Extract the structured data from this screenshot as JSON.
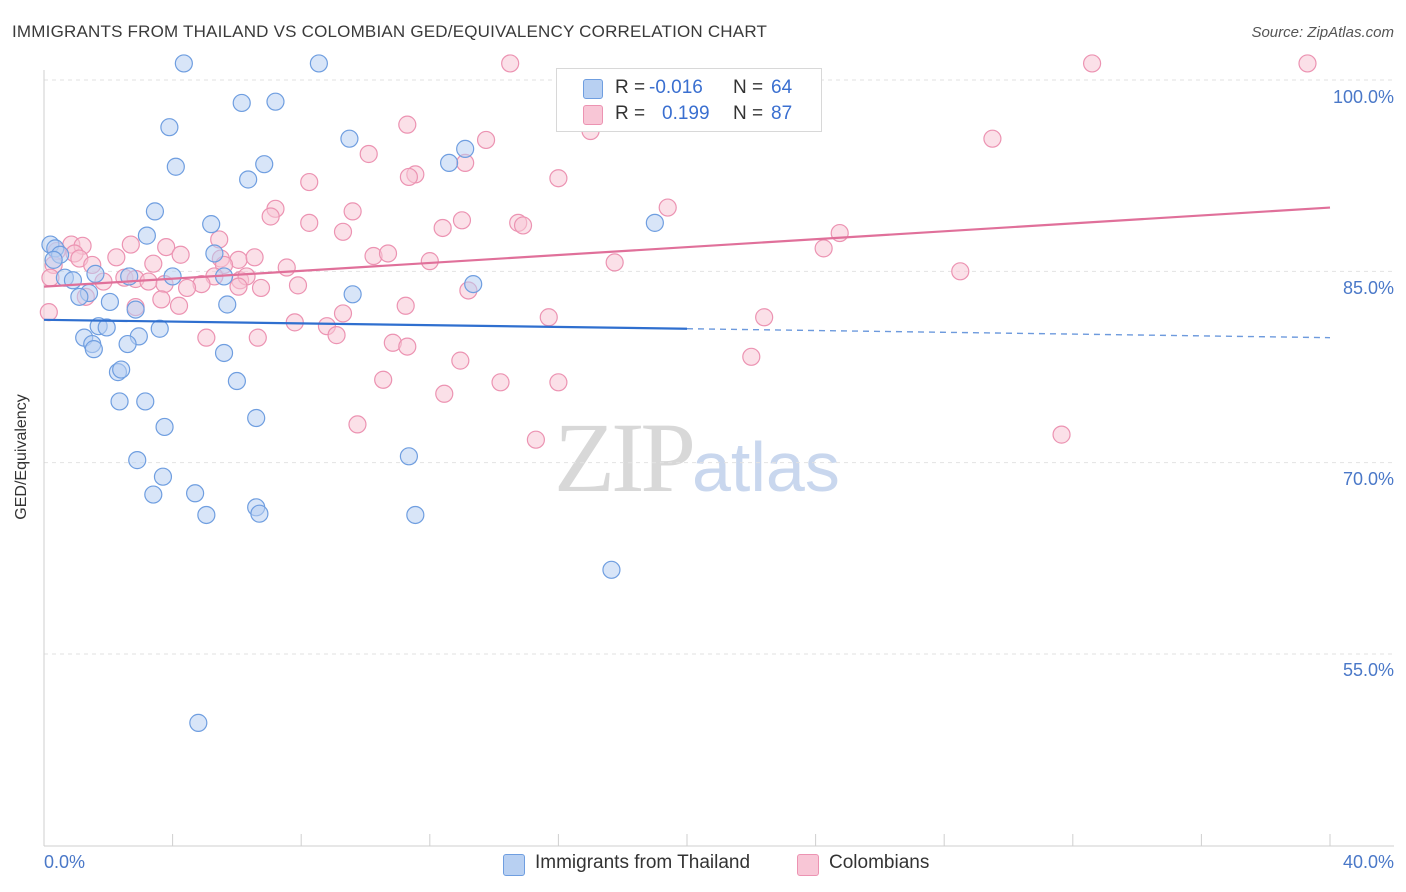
{
  "header": {
    "title": "IMMIGRANTS FROM THAILAND VS COLOMBIAN GED/EQUIVALENCY CORRELATION CHART",
    "source": "Source: ZipAtlas.com"
  },
  "watermark": {
    "a": "ZIP",
    "b": "atlas"
  },
  "legend_top": {
    "rows": [
      {
        "r_label": "R =",
        "r_value": "-0.016",
        "n_label": "N =",
        "n_value": "64"
      },
      {
        "r_label": "R =",
        "r_value": "0.199",
        "n_label": "N =",
        "n_value": "87"
      }
    ]
  },
  "legend_bottom": {
    "items": [
      {
        "label": "Immigrants from Thailand"
      },
      {
        "label": "Colombians"
      }
    ]
  },
  "colors": {
    "blue_fill": "#b8d0f2",
    "blue_stroke": "#6f9ee0",
    "blue_line": "#2f6fcf",
    "pink_fill": "#f8c6d6",
    "pink_stroke": "#ec93b2",
    "pink_line": "#e0709a",
    "grid": "#e2e2e2",
    "axis_text": "#4a78c8"
  },
  "chart_data": {
    "type": "scatter",
    "title": "IMMIGRANTS FROM THAILAND VS COLOMBIAN GED/EQUIVALENCY CORRELATION CHART",
    "xlabel": "",
    "ylabel": "GED/Equivalency",
    "xlim": [
      0,
      40
    ],
    "ylim": [
      40,
      102
    ],
    "x_tick_labels": [
      "0.0%",
      "40.0%"
    ],
    "y_ticks": [
      55,
      70,
      85,
      100
    ],
    "y_tick_labels": [
      "55.0%",
      "70.0%",
      "85.0%",
      "100.0%"
    ],
    "grid": true,
    "legend_position": "top-center and bottom",
    "series": [
      {
        "name": "Immigrants from Thailand",
        "r": -0.016,
        "n": 64,
        "trend": {
          "x0": 0,
          "y0": 81.2,
          "x1": 20,
          "y1": 80.5,
          "dash_to_x": 40,
          "dash_to_y": 79.8
        },
        "points": [
          [
            4.35,
            101.3
          ],
          [
            8.55,
            101.3
          ],
          [
            6.15,
            98.2
          ],
          [
            7.2,
            98.3
          ],
          [
            3.9,
            96.3
          ],
          [
            9.5,
            95.4
          ],
          [
            13.1,
            94.6
          ],
          [
            4.1,
            93.2
          ],
          [
            6.85,
            93.4
          ],
          [
            12.6,
            93.5
          ],
          [
            6.35,
            92.2
          ],
          [
            3.45,
            89.7
          ],
          [
            5.2,
            88.7
          ],
          [
            3.2,
            87.8
          ],
          [
            19.0,
            88.8
          ],
          [
            0.2,
            87.1
          ],
          [
            0.35,
            86.8
          ],
          [
            0.5,
            86.3
          ],
          [
            0.3,
            85.9
          ],
          [
            5.3,
            86.4
          ],
          [
            1.6,
            84.8
          ],
          [
            2.65,
            84.6
          ],
          [
            4.0,
            84.6
          ],
          [
            5.6,
            84.6
          ],
          [
            13.35,
            84.0
          ],
          [
            0.65,
            84.5
          ],
          [
            0.9,
            84.3
          ],
          [
            1.4,
            83.3
          ],
          [
            1.1,
            83.0
          ],
          [
            9.6,
            83.2
          ],
          [
            2.05,
            82.6
          ],
          [
            5.7,
            82.4
          ],
          [
            2.85,
            82.0
          ],
          [
            1.7,
            80.7
          ],
          [
            1.95,
            80.6
          ],
          [
            3.6,
            80.5
          ],
          [
            1.25,
            79.8
          ],
          [
            2.95,
            79.9
          ],
          [
            1.5,
            79.3
          ],
          [
            2.6,
            79.3
          ],
          [
            1.55,
            78.9
          ],
          [
            5.6,
            78.6
          ],
          [
            2.3,
            77.1
          ],
          [
            2.4,
            77.3
          ],
          [
            6.0,
            76.4
          ],
          [
            2.35,
            74.8
          ],
          [
            3.15,
            74.8
          ],
          [
            6.6,
            73.5
          ],
          [
            3.75,
            72.8
          ],
          [
            11.35,
            70.5
          ],
          [
            2.9,
            70.2
          ],
          [
            3.7,
            68.9
          ],
          [
            3.4,
            67.5
          ],
          [
            4.7,
            67.6
          ],
          [
            6.6,
            66.5
          ],
          [
            6.7,
            66.0
          ],
          [
            5.05,
            65.9
          ],
          [
            11.55,
            65.9
          ],
          [
            17.65,
            61.6
          ],
          [
            4.8,
            49.6
          ]
        ]
      },
      {
        "name": "Colombians",
        "r": 0.199,
        "n": 87,
        "trend": {
          "x0": 0,
          "y0": 83.8,
          "x1": 40,
          "y1": 90.0
        },
        "points": [
          [
            14.5,
            101.3
          ],
          [
            32.6,
            101.3
          ],
          [
            39.3,
            101.3
          ],
          [
            11.3,
            96.5
          ],
          [
            17.0,
            96.0
          ],
          [
            13.75,
            95.3
          ],
          [
            29.5,
            95.4
          ],
          [
            10.1,
            94.2
          ],
          [
            13.1,
            93.5
          ],
          [
            11.55,
            92.6
          ],
          [
            11.35,
            92.4
          ],
          [
            16.0,
            92.3
          ],
          [
            8.25,
            92.0
          ],
          [
            19.4,
            90.0
          ],
          [
            7.2,
            89.9
          ],
          [
            9.6,
            89.7
          ],
          [
            7.05,
            89.3
          ],
          [
            13.0,
            89.0
          ],
          [
            14.75,
            88.8
          ],
          [
            8.25,
            88.8
          ],
          [
            14.9,
            88.6
          ],
          [
            12.4,
            88.4
          ],
          [
            9.3,
            88.1
          ],
          [
            24.75,
            88.0
          ],
          [
            0.85,
            87.1
          ],
          [
            1.2,
            87.0
          ],
          [
            2.7,
            87.1
          ],
          [
            0.4,
            86.6
          ],
          [
            0.95,
            86.4
          ],
          [
            5.45,
            87.5
          ],
          [
            3.8,
            86.9
          ],
          [
            24.25,
            86.8
          ],
          [
            1.1,
            86.0
          ],
          [
            2.25,
            86.1
          ],
          [
            3.4,
            85.6
          ],
          [
            4.25,
            86.3
          ],
          [
            5.5,
            86.0
          ],
          [
            6.05,
            85.9
          ],
          [
            6.55,
            86.1
          ],
          [
            10.25,
            86.2
          ],
          [
            10.7,
            86.4
          ],
          [
            12.0,
            85.8
          ],
          [
            17.75,
            85.7
          ],
          [
            0.3,
            85.5
          ],
          [
            1.5,
            85.5
          ],
          [
            5.6,
            85.5
          ],
          [
            7.55,
            85.3
          ],
          [
            28.5,
            85.0
          ],
          [
            0.2,
            84.5
          ],
          [
            2.5,
            84.5
          ],
          [
            2.85,
            84.4
          ],
          [
            5.3,
            84.6
          ],
          [
            6.1,
            84.3
          ],
          [
            6.3,
            84.6
          ],
          [
            3.25,
            84.2
          ],
          [
            1.85,
            84.2
          ],
          [
            3.75,
            84.0
          ],
          [
            4.9,
            84.0
          ],
          [
            6.05,
            83.8
          ],
          [
            4.45,
            83.7
          ],
          [
            6.75,
            83.7
          ],
          [
            7.9,
            83.9
          ],
          [
            13.2,
            83.5
          ],
          [
            1.3,
            83.0
          ],
          [
            3.65,
            82.8
          ],
          [
            4.2,
            82.3
          ],
          [
            11.25,
            82.3
          ],
          [
            2.85,
            82.2
          ],
          [
            0.15,
            81.8
          ],
          [
            9.3,
            81.7
          ],
          [
            15.7,
            81.4
          ],
          [
            22.4,
            81.4
          ],
          [
            7.8,
            81.0
          ],
          [
            8.8,
            80.7
          ],
          [
            9.1,
            80.0
          ],
          [
            5.05,
            79.8
          ],
          [
            6.65,
            79.8
          ],
          [
            10.85,
            79.4
          ],
          [
            11.3,
            79.1
          ],
          [
            12.95,
            78.0
          ],
          [
            22.0,
            78.3
          ],
          [
            10.55,
            76.5
          ],
          [
            14.2,
            76.3
          ],
          [
            16.0,
            76.3
          ],
          [
            12.45,
            75.4
          ],
          [
            9.75,
            73.0
          ],
          [
            15.3,
            71.8
          ],
          [
            31.65,
            72.2
          ]
        ]
      }
    ]
  }
}
